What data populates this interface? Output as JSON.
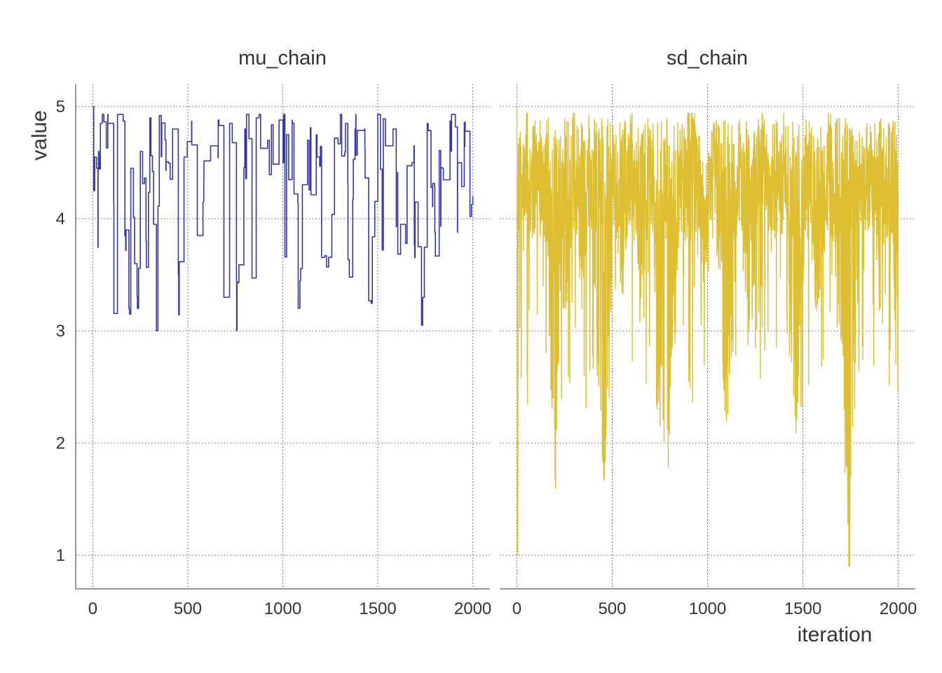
{
  "chart_data": {
    "type": "line",
    "facets": [
      "mu_chain",
      "sd_chain"
    ],
    "xlabel": "iteration",
    "ylabel": "value",
    "xlim": [
      0,
      2000
    ],
    "ylim": [
      0.7,
      5.2
    ],
    "x_ticks": [
      0,
      500,
      1000,
      1500,
      2000
    ],
    "y_ticks": [
      1,
      2,
      3,
      4,
      5
    ],
    "grid": true,
    "legend": "none",
    "series": [
      {
        "facet": "mu_chain",
        "color": "#3537a5",
        "style": "random-walk-metropolis",
        "seed": 11,
        "accept_rate": 0.06,
        "points": [
          [
            0,
            5.0
          ],
          [
            5,
            4.25
          ],
          [
            10,
            4.55
          ],
          [
            20,
            4.45
          ],
          [
            30,
            4.6
          ],
          [
            40,
            4.85
          ],
          [
            80,
            4.85
          ],
          [
            110,
            4.15
          ],
          [
            130,
            4.93
          ],
          [
            160,
            4.87
          ],
          [
            175,
            3.9
          ],
          [
            190,
            3.2
          ],
          [
            200,
            4.45
          ],
          [
            220,
            3.6
          ],
          [
            235,
            3.2
          ],
          [
            250,
            4.6
          ],
          [
            280,
            3.8
          ],
          [
            300,
            4.9
          ],
          [
            320,
            3.95
          ],
          [
            335,
            3.0
          ],
          [
            350,
            4.92
          ],
          [
            380,
            4.7
          ],
          [
            420,
            4.8
          ],
          [
            450,
            3.5
          ],
          [
            480,
            4.55
          ],
          [
            520,
            4.87
          ],
          [
            550,
            3.85
          ],
          [
            580,
            4.15
          ],
          [
            620,
            4.65
          ],
          [
            660,
            4.88
          ],
          [
            690,
            3.3
          ],
          [
            720,
            4.85
          ],
          [
            760,
            3.43
          ],
          [
            800,
            4.8
          ],
          [
            860,
            4.9
          ],
          [
            920,
            4.7
          ],
          [
            980,
            4.88
          ],
          [
            1020,
            4.75
          ],
          [
            1050,
            4.85
          ],
          [
            1090,
            3.45
          ],
          [
            1130,
            4.7
          ],
          [
            1180,
            4.55
          ],
          [
            1230,
            3.57
          ],
          [
            1290,
            4.7
          ],
          [
            1330,
            4.85
          ],
          [
            1350,
            3.48
          ],
          [
            1380,
            4.8
          ],
          [
            1430,
            4.8
          ],
          [
            1460,
            3.27
          ],
          [
            1500,
            4.93
          ],
          [
            1540,
            4.65
          ],
          [
            1580,
            4.8
          ],
          [
            1620,
            3.95
          ],
          [
            1680,
            4.5
          ],
          [
            1730,
            3.05
          ],
          [
            1760,
            4.85
          ],
          [
            1800,
            3.88
          ],
          [
            1840,
            4.45
          ],
          [
            1880,
            4.87
          ],
          [
            1920,
            4.5
          ],
          [
            1960,
            4.78
          ],
          [
            1985,
            4.02
          ],
          [
            2000,
            4.2
          ]
        ]
      },
      {
        "facet": "sd_chain",
        "color": "#dfbf32",
        "style": "noisy-trace",
        "seed": 7,
        "points": [
          [
            0,
            5.0
          ],
          [
            5,
            1.0
          ],
          [
            12,
            4.6
          ],
          [
            30,
            4.1
          ],
          [
            50,
            4.85
          ],
          [
            80,
            4.2
          ],
          [
            120,
            4.5
          ],
          [
            160,
            3.8
          ],
          [
            190,
            2.4
          ],
          [
            200,
            1.68
          ],
          [
            230,
            3.9
          ],
          [
            260,
            3.4
          ],
          [
            300,
            4.7
          ],
          [
            340,
            3.2
          ],
          [
            380,
            4.8
          ],
          [
            420,
            3.0
          ],
          [
            460,
            1.92
          ],
          [
            500,
            4.3
          ],
          [
            560,
            3.6
          ],
          [
            600,
            4.85
          ],
          [
            650,
            3.3
          ],
          [
            700,
            4.6
          ],
          [
            750,
            2.4
          ],
          [
            800,
            2.08
          ],
          [
            860,
            4.5
          ],
          [
            920,
            4.9
          ],
          [
            980,
            3.6
          ],
          [
            1040,
            4.7
          ],
          [
            1100,
            2.2
          ],
          [
            1160,
            4.4
          ],
          [
            1220,
            3.1
          ],
          [
            1280,
            4.8
          ],
          [
            1340,
            3.9
          ],
          [
            1400,
            4.6
          ],
          [
            1460,
            2.24
          ],
          [
            1520,
            4.5
          ],
          [
            1580,
            3.3
          ],
          [
            1640,
            4.7
          ],
          [
            1700,
            3.0
          ],
          [
            1745,
            0.9
          ],
          [
            1760,
            2.25
          ],
          [
            1800,
            4.2
          ],
          [
            1860,
            4.6
          ],
          [
            1900,
            3.4
          ],
          [
            1950,
            4.4
          ],
          [
            1990,
            3.3
          ],
          [
            2000,
            4.2
          ]
        ]
      }
    ]
  }
}
